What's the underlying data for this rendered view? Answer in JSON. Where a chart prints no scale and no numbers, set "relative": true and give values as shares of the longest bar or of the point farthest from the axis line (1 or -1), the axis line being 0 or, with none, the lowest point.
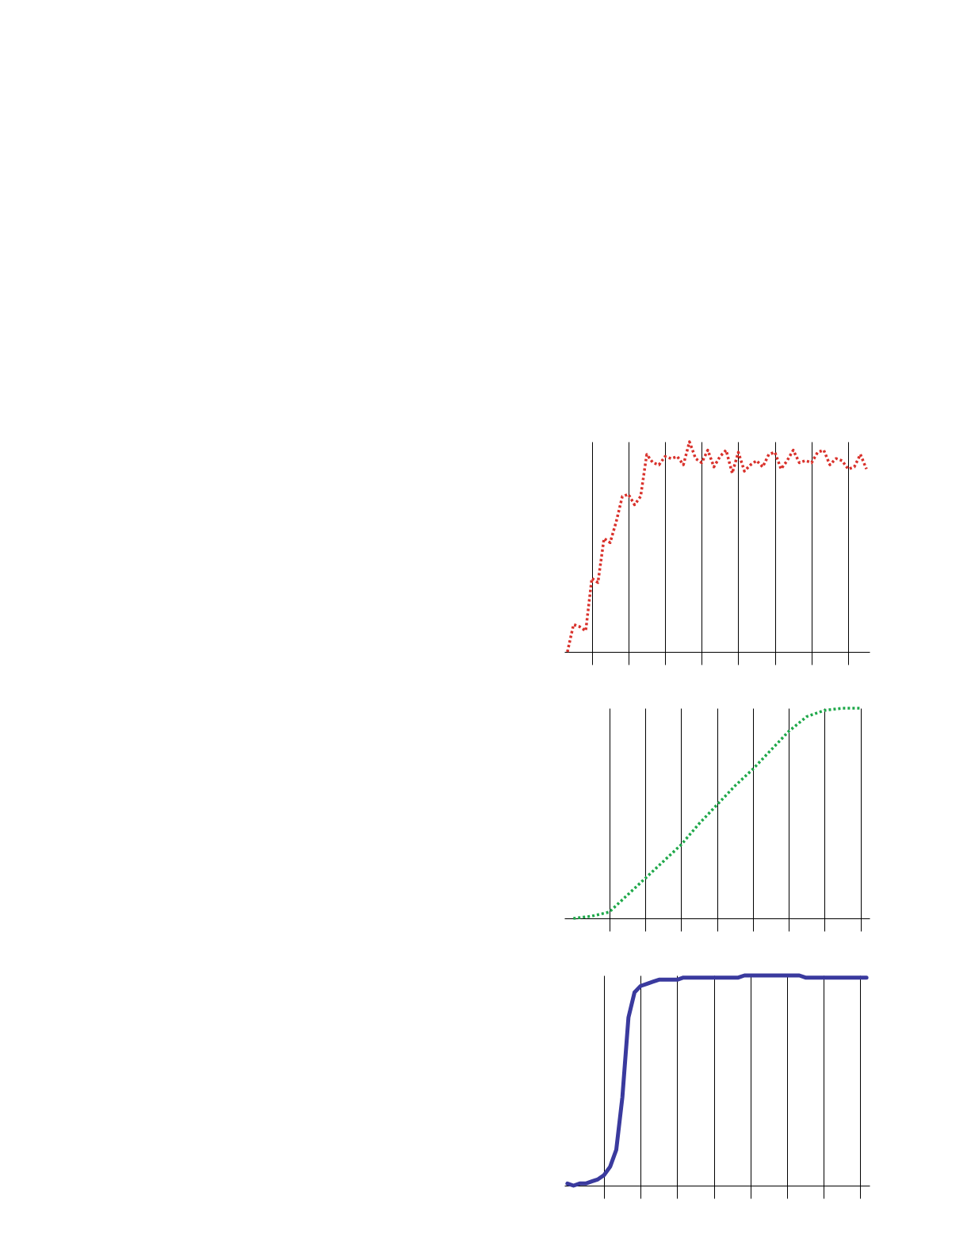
{
  "chart_data": [
    {
      "type": "line",
      "relative": true,
      "line_style": "dotted",
      "grid": "x",
      "tick_labels": false,
      "categories": [
        null,
        null,
        null,
        null,
        null,
        null,
        null,
        null,
        null,
        null,
        null,
        null,
        null,
        null,
        null,
        null,
        null,
        null,
        null,
        null,
        null,
        null,
        null,
        null,
        null,
        null,
        null,
        null,
        null,
        null,
        null,
        null,
        null,
        null,
        null,
        null,
        null,
        null,
        null,
        null,
        null,
        null,
        null,
        null,
        null,
        null,
        null,
        null,
        null,
        null
      ],
      "series": [
        {
          "color": "#d9312b",
          "values": [
            0,
            0.13,
            0.12,
            0.1,
            0.35,
            0.33,
            0.54,
            0.52,
            0.62,
            0.74,
            0.75,
            0.7,
            0.74,
            0.94,
            0.9,
            0.89,
            0.93,
            0.92,
            0.93,
            0.89,
            1.0,
            0.92,
            0.9,
            0.96,
            0.88,
            0.93,
            0.96,
            0.85,
            0.95,
            0.86,
            0.89,
            0.91,
            0.88,
            0.94,
            0.95,
            0.87,
            0.91,
            0.96,
            0.9,
            0.91,
            0.9,
            0.95,
            0.96,
            0.89,
            0.92,
            0.91,
            0.87,
            0.88,
            0.94,
            0.87
          ]
        }
      ]
    },
    {
      "type": "line",
      "relative": true,
      "line_style": "dotted",
      "grid": "x",
      "tick_labels": false,
      "categories": [
        null,
        null,
        null,
        null,
        null,
        null,
        null,
        null,
        null,
        null,
        null,
        null,
        null,
        null,
        null,
        null,
        null
      ],
      "series": [
        {
          "color": "#1fa84a",
          "values": [
            0,
            0.01,
            0.03,
            0.11,
            0.19,
            0.27,
            0.35,
            0.45,
            0.54,
            0.63,
            0.71,
            0.8,
            0.89,
            0.96,
            0.99,
            1.0,
            1.0
          ]
        }
      ]
    },
    {
      "type": "line",
      "relative": true,
      "line_style": "solid",
      "grid": "x",
      "tick_labels": false,
      "categories": [
        null,
        null,
        null,
        null,
        null,
        null,
        null,
        null,
        null,
        null,
        null,
        null,
        null,
        null,
        null,
        null,
        null,
        null,
        null,
        null,
        null,
        null,
        null,
        null,
        null,
        null,
        null,
        null,
        null,
        null,
        null,
        null,
        null,
        null,
        null,
        null,
        null,
        null,
        null,
        null,
        null,
        null,
        null,
        null,
        null,
        null,
        null,
        null,
        null,
        null
      ],
      "series": [
        {
          "color": "#3a3a9e",
          "values": [
            0.01,
            0.0,
            0.01,
            0.01,
            0.02,
            0.03,
            0.05,
            0.09,
            0.17,
            0.42,
            0.8,
            0.92,
            0.95,
            0.96,
            0.97,
            0.98,
            0.98,
            0.98,
            0.98,
            0.99,
            0.99,
            0.99,
            0.99,
            0.99,
            0.99,
            0.99,
            0.99,
            0.99,
            0.99,
            1.0,
            1.0,
            1.0,
            1.0,
            1.0,
            1.0,
            1.0,
            1.0,
            1.0,
            1.0,
            0.99,
            0.99,
            0.99,
            0.99,
            0.99,
            0.99,
            0.99,
            0.99,
            0.99,
            0.99,
            0.99
          ]
        }
      ]
    }
  ]
}
